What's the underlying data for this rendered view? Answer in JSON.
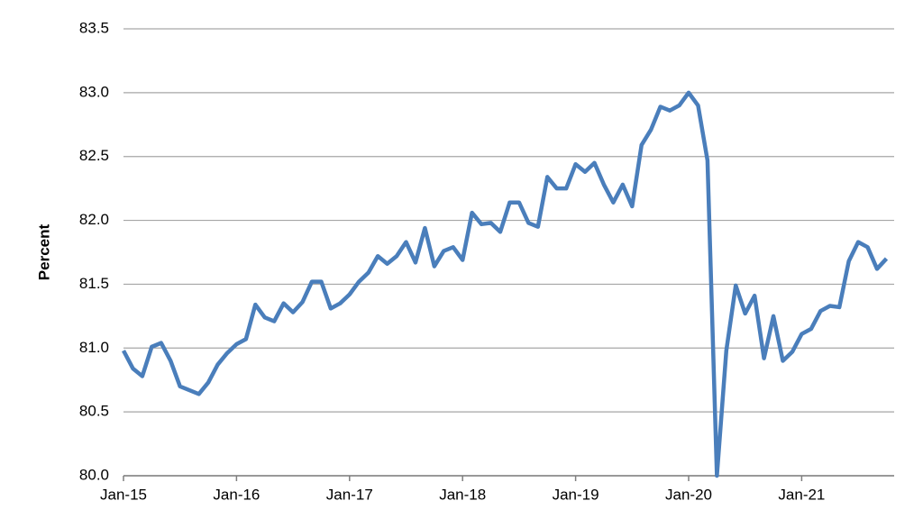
{
  "chart_data": {
    "type": "line",
    "y_label": "Percent",
    "categories": [
      "Jan-15",
      null,
      null,
      null,
      null,
      null,
      null,
      null,
      null,
      null,
      null,
      null,
      "Jan-16",
      null,
      null,
      null,
      null,
      null,
      null,
      null,
      null,
      null,
      null,
      null,
      "Jan-17",
      null,
      null,
      null,
      null,
      null,
      null,
      null,
      null,
      null,
      null,
      null,
      "Jan-18",
      null,
      null,
      null,
      null,
      null,
      null,
      null,
      null,
      null,
      null,
      null,
      "Jan-19",
      null,
      null,
      null,
      null,
      null,
      null,
      null,
      null,
      null,
      null,
      null,
      "Jan-20",
      null,
      null,
      null,
      null,
      null,
      null,
      null,
      null,
      null,
      null,
      null,
      "Jan-21",
      null,
      null,
      null,
      null,
      null,
      null,
      null,
      null,
      null
    ],
    "series": [
      {
        "color": "#4a7ebb",
        "values": [
          80.98,
          80.84,
          80.78,
          81.01,
          81.04,
          80.9,
          80.7,
          80.67,
          80.64,
          80.73,
          80.87,
          80.96,
          81.03,
          81.07,
          81.34,
          81.24,
          81.21,
          81.35,
          81.28,
          81.36,
          81.52,
          81.52,
          81.31,
          81.35,
          81.42,
          81.52,
          81.59,
          81.72,
          81.66,
          81.72,
          81.83,
          81.67,
          81.94,
          81.64,
          81.76,
          81.79,
          81.69,
          82.06,
          81.97,
          81.98,
          81.91,
          82.14,
          82.14,
          81.98,
          81.95,
          82.34,
          82.25,
          82.25,
          82.44,
          82.38,
          82.45,
          82.28,
          82.14,
          82.28,
          82.11,
          82.59,
          82.71,
          82.89,
          82.86,
          82.9,
          83.0,
          82.9,
          82.47,
          80.0,
          80.98,
          81.49,
          81.27,
          81.41,
          80.92,
          81.25,
          80.9,
          80.97,
          81.11,
          81.15,
          81.29,
          81.33,
          81.32,
          81.68,
          81.83,
          81.79,
          81.62,
          81.7
        ]
      }
    ],
    "ylim": [
      80,
      83.5
    ],
    "yticks": [
      {
        "value": 80,
        "label": "80.0"
      },
      80.5,
      {
        "value": 81,
        "label": "81.0"
      },
      81.5,
      {
        "value": 82,
        "label": "82.0"
      },
      82.5,
      {
        "value": 83,
        "label": "83.0"
      },
      83.5
    ],
    "grid": true
  }
}
